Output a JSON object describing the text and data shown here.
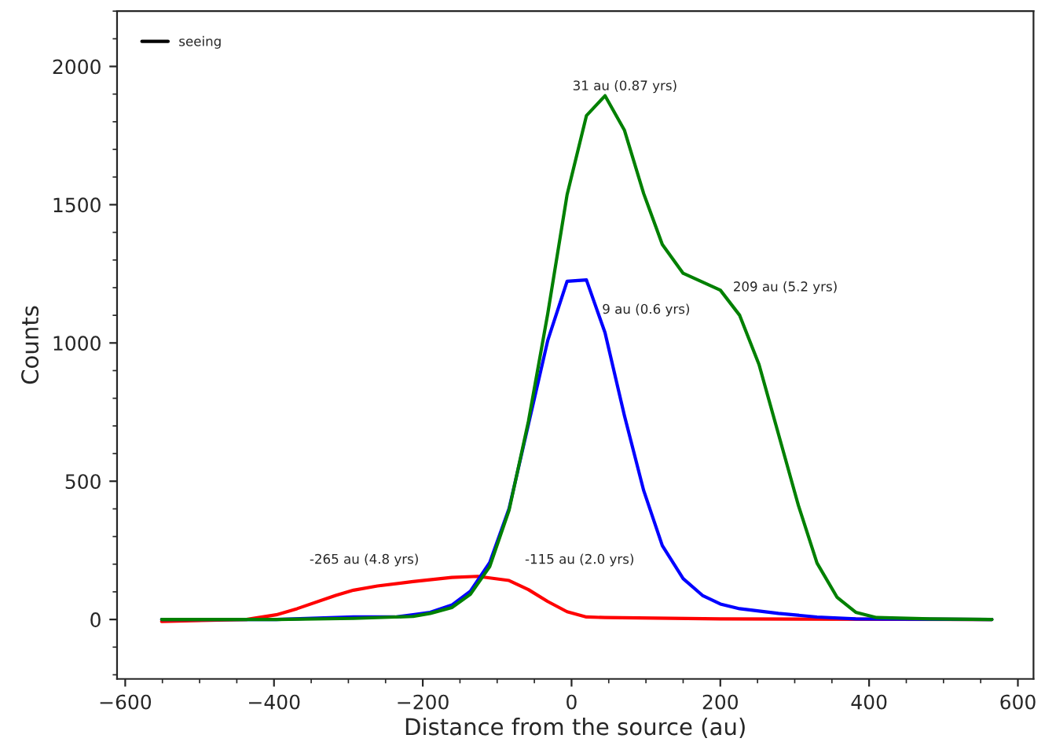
{
  "chart_data": {
    "type": "line",
    "xlabel": "Distance from the source (au)",
    "ylabel": "Counts",
    "xlim": [
      -611,
      621
    ],
    "ylim": [
      -215,
      2200
    ],
    "xticks": [
      {
        "value": -600,
        "label": "−600"
      },
      {
        "value": -400,
        "label": "−400"
      },
      {
        "value": -200,
        "label": "−200"
      },
      0,
      200,
      400,
      600
    ],
    "yticks": [
      0,
      500,
      1000,
      1500,
      2000
    ],
    "grid": false,
    "legend": "top left",
    "marker": "none",
    "line_style": "solid",
    "series": [
      {
        "name": "seeing",
        "color": "#000000"
      },
      {
        "color": "#ff0000",
        "x": [
          -551,
          -437,
          -397,
          -369,
          -317,
          -293,
          -261,
          -213,
          -161,
          -126,
          -84,
          -58,
          -32,
          -6,
          20,
          45,
          200,
          565
        ],
        "values": [
          -7,
          0,
          17,
          39,
          87,
          106,
          121,
          137,
          152,
          156,
          141,
          108,
          65,
          28,
          9,
          7,
          2,
          0
        ]
      },
      {
        "color": "#0000ff",
        "x": [
          -551,
          -397,
          -293,
          -237,
          -213,
          -190,
          -161,
          -136,
          -110,
          -84,
          -58,
          -32,
          -6,
          20,
          45,
          71,
          97,
          122,
          150,
          176,
          200,
          226,
          278,
          330,
          382,
          565
        ],
        "values": [
          0,
          0,
          9,
          9,
          17,
          26,
          52,
          102,
          206,
          401,
          705,
          1009,
          1223,
          1228,
          1037,
          738,
          466,
          267,
          148,
          87,
          56,
          39,
          22,
          9,
          2,
          0
        ]
      },
      {
        "color": "#008000",
        "x": [
          -551,
          -397,
          -293,
          -213,
          -190,
          -161,
          -136,
          -110,
          -84,
          -58,
          -32,
          -6,
          20,
          45,
          71,
          97,
          122,
          150,
          200,
          226,
          252,
          278,
          305,
          330,
          357,
          382,
          410,
          482,
          565
        ],
        "values": [
          0,
          0,
          4,
          11,
          22,
          43,
          91,
          191,
          395,
          716,
          1106,
          1536,
          1822,
          1894,
          1770,
          1540,
          1356,
          1252,
          1191,
          1100,
          922,
          672,
          412,
          204,
          80,
          26,
          7,
          2,
          0
        ]
      }
    ],
    "annotations": [
      "31 au (0.87 yrs)",
      {
        "text": "9 au (0.6 yrs)",
        "x": 41,
        "y": 1119
      },
      "209 au (5.2 yrs)",
      "-265 au (4.8 yrs)",
      "-115 au (2.0 yrs)"
    ]
  }
}
